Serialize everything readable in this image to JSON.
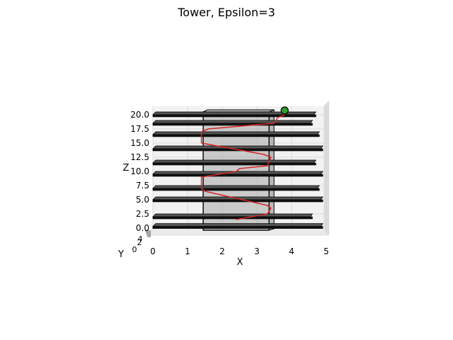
{
  "chart_data": {
    "type": "3d-line",
    "title": "Tower, Epsilon=3",
    "xlabel": "X",
    "ylabel": "Y",
    "zlabel": "Z",
    "xlim": [
      0,
      5
    ],
    "zlim": [
      0,
      20
    ],
    "x_ticks": [
      "0",
      "1",
      "2",
      "3",
      "4",
      "5"
    ],
    "z_ticks": [
      "0.0",
      "2.5",
      "5.0",
      "7.5",
      "10.0",
      "12.5",
      "15.0",
      "17.5",
      "20.0"
    ],
    "y_ticks_visible": [
      "0",
      "2",
      "4"
    ],
    "grid": true,
    "colors": {
      "path": "#d62728",
      "goal_face": "#2ca02c",
      "goal_edge": "#000000",
      "slab": "#111111",
      "slab_top": "#555555",
      "column": "#9a9a9a"
    },
    "column": {
      "x_range": [
        1.45,
        3.35
      ],
      "z_range": [
        0,
        20.5
      ]
    },
    "platforms": [
      {
        "z": 0.3,
        "x_range": [
          0,
          4.9
        ]
      },
      {
        "z": 2.0,
        "x_range": [
          0,
          4.6
        ]
      },
      {
        "z": 5.0,
        "x_range": [
          0,
          4.9
        ]
      },
      {
        "z": 7.0,
        "x_range": [
          0,
          4.8
        ]
      },
      {
        "z": 9.5,
        "x_range": [
          0,
          4.9
        ]
      },
      {
        "z": 11.5,
        "x_range": [
          0,
          4.7
        ]
      },
      {
        "z": 14.0,
        "x_range": [
          0,
          4.9
        ]
      },
      {
        "z": 16.5,
        "x_range": [
          0,
          4.8
        ]
      },
      {
        "z": 18.5,
        "x_range": [
          0,
          4.6
        ]
      },
      {
        "z": 20.0,
        "x_range": [
          0,
          4.7
        ]
      }
    ],
    "path": {
      "name": "",
      "x": [
        2.4,
        3.3,
        3.4,
        3.3,
        1.5,
        1.4,
        1.4,
        2.4,
        2.5,
        3.3,
        3.4,
        3.2,
        1.4,
        1.4,
        1.6,
        3.5,
        3.6,
        3.8
      ],
      "z": [
        1.5,
        2.5,
        3.5,
        4.0,
        6.5,
        7.0,
        9.0,
        10.0,
        10.5,
        11.0,
        12.5,
        13.0,
        15.0,
        17.0,
        17.5,
        18.5,
        19.5,
        20.0
      ]
    },
    "goal": {
      "x": 3.8,
      "z": 20.5
    }
  }
}
